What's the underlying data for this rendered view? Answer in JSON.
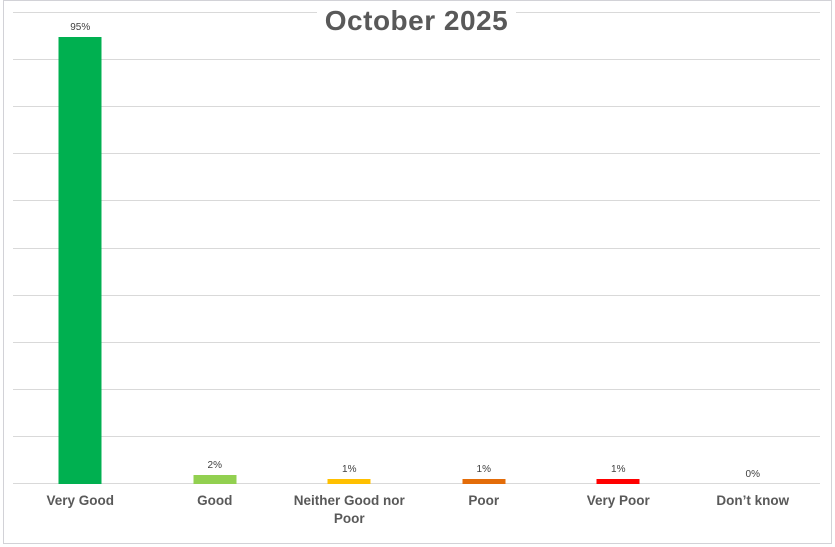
{
  "chart_data": {
    "type": "bar",
    "title": "October 2025",
    "categories": [
      "Very Good",
      "Good",
      "Neither Good nor Poor",
      "Poor",
      "Very Poor",
      "Don’t know"
    ],
    "values": [
      95,
      2,
      1,
      1,
      1,
      0
    ],
    "value_labels": [
      "95%",
      "2%",
      "1%",
      "1%",
      "1%",
      "0%"
    ],
    "bar_colors": [
      "#00B050",
      "#92D050",
      "#FFC000",
      "#E36C09",
      "#FF0000",
      null
    ],
    "xlabel": "",
    "ylabel": "",
    "ylim": [
      0,
      100
    ],
    "gridline_step": 10,
    "grid": true,
    "legend": "none",
    "value_axis_labels_visible": false,
    "data_labels_visible": true
  },
  "styles": {
    "title_color": "#595959",
    "category_label_color": "#595959",
    "data_label_color": "#404040",
    "gridline_color": "#D9D9D9",
    "axis_line_color": "#D9D9D9",
    "frame_border_color": "#D2D2D7",
    "background": "#FFFFFF"
  }
}
